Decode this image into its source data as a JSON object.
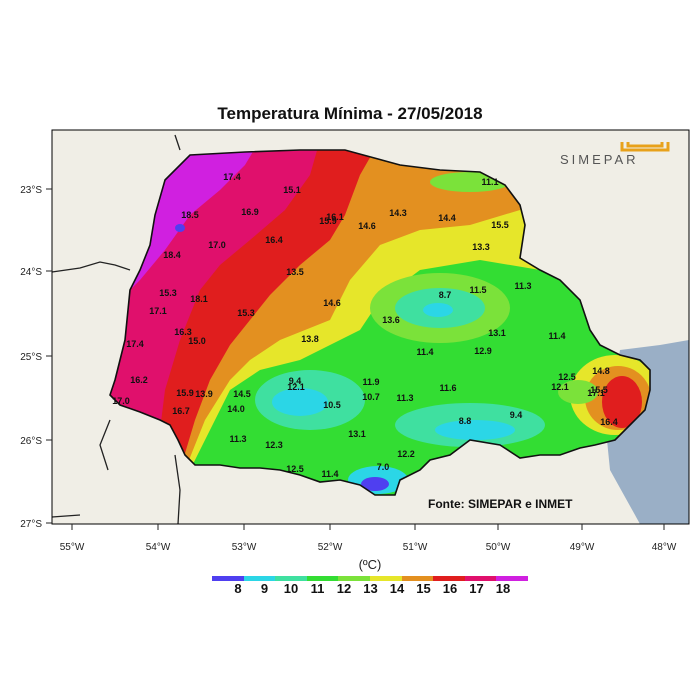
{
  "title": "Temperatura Mínima - 27/05/2018",
  "source": "Fonte: SIMEPAR e INMET",
  "logo_text": "SIMEPAR",
  "legend": {
    "unit": "(ºC)",
    "ticks": [
      "8",
      "9",
      "10",
      "11",
      "12",
      "13",
      "14",
      "15",
      "16",
      "17",
      "18"
    ],
    "colors": [
      "#4f3ff0",
      "#2bd6e6",
      "#3fe0a0",
      "#33dd33",
      "#7be23a",
      "#e6e62a",
      "#e39020",
      "#e01e1e",
      "#e0106c",
      "#d020e0"
    ]
  },
  "axes": {
    "x_labels": [
      "55°W",
      "54°W",
      "53°W",
      "52°W",
      "51°W",
      "50°W",
      "49°W",
      "48°W"
    ],
    "y_labels": [
      "23°S",
      "24°S",
      "25°S",
      "26°S",
      "27°S"
    ]
  },
  "colors": {
    "ocean": "#9aafc6",
    "land": "#f0eee6",
    "frame": "#000000"
  },
  "station_values": [
    "17.4",
    "15.1",
    "16.9",
    "16.1",
    "15.9",
    "14.3",
    "14.4",
    "15.5",
    "14.6",
    "18.5",
    "17.0",
    "16.4",
    "13.3",
    "18.4",
    "13.5",
    "15.3",
    "18.1",
    "14.6",
    "8.7",
    "11.5",
    "11.3",
    "17.1",
    "15.3",
    "13.6",
    "16.3",
    "15.0",
    "13.8",
    "13.1",
    "11.4",
    "17.4",
    "11.4",
    "12.9",
    "16.2",
    "9.4",
    "11.9",
    "12.5",
    "14.8",
    "15.9",
    "13.9",
    "14.5",
    "12.1",
    "11.6",
    "12.1",
    "17.0",
    "10.7",
    "11.3",
    "15.5",
    "17.1",
    "16.7",
    "14.0",
    "10.5",
    "9.4",
    "8.8",
    "16.4",
    "11.3",
    "12.3",
    "13.1",
    "12.2",
    "12.5",
    "7.0",
    "11.4",
    "11.1"
  ]
}
